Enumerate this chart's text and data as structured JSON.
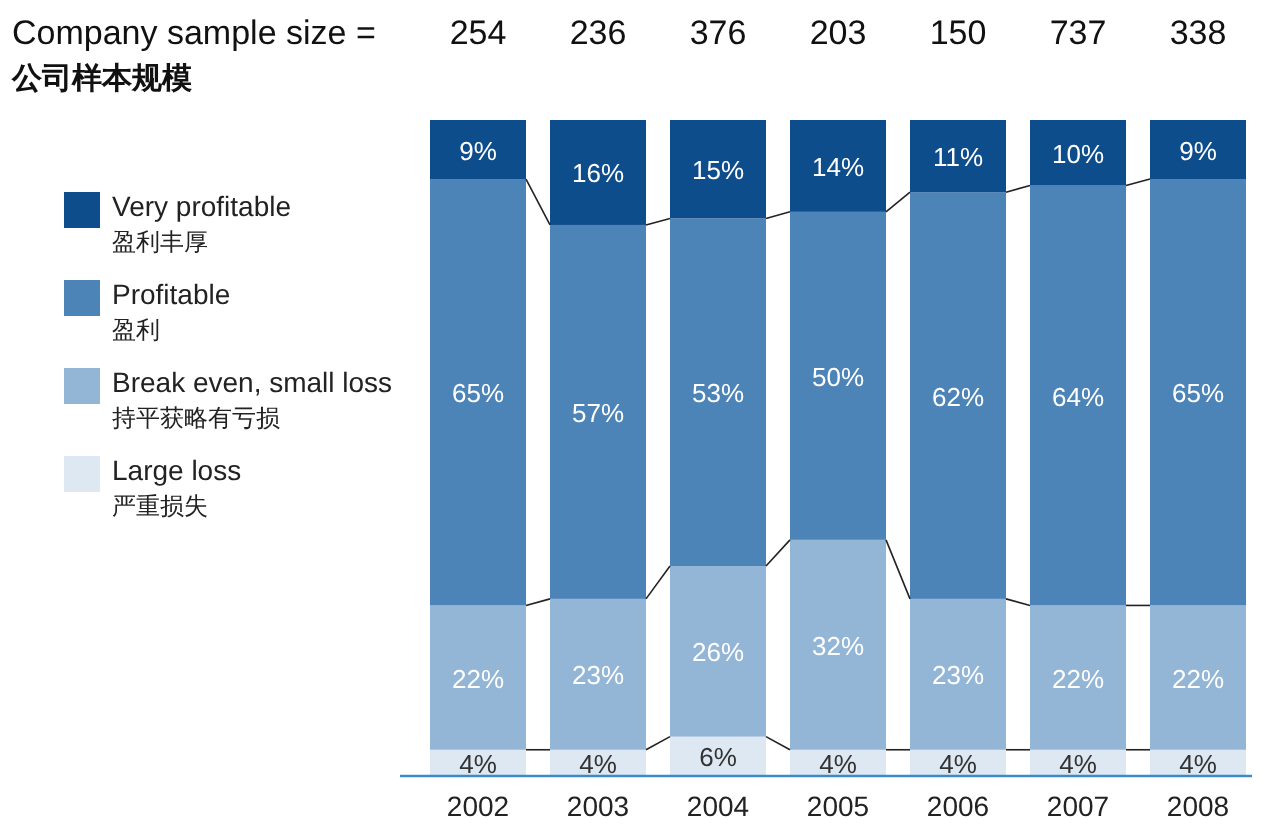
{
  "chart_data": {
    "type": "bar",
    "stacked": true,
    "categories": [
      "2002",
      "2003",
      "2004",
      "2005",
      "2006",
      "2007",
      "2008"
    ],
    "series": [
      {
        "name": "Large loss\n严重损失",
        "color": "#dde8f2",
        "values": [
          4,
          4,
          6,
          4,
          4,
          4,
          4
        ],
        "value_labels": [
          "4%",
          "4%",
          "6%",
          "4%",
          "4%",
          "4%",
          "4%"
        ]
      },
      {
        "name": "Break even, small loss\n持平获略有亏损",
        "color": "#93b5d6",
        "values": [
          22,
          23,
          26,
          32,
          23,
          22,
          22
        ],
        "value_labels": [
          "22%",
          "23%",
          "26%",
          "32%",
          "23%",
          "22%",
          "22%"
        ]
      },
      {
        "name": "Profitable\n盈利",
        "color": "#4d84b8",
        "values": [
          65,
          57,
          53,
          50,
          62,
          64,
          65
        ],
        "value_labels": [
          "65%",
          "57%",
          "53%",
          "50%",
          "62%",
          "64%",
          "65%"
        ]
      },
      {
        "name": "Very profitable\n盈利丰厚",
        "color": "#0e4d8c",
        "values": [
          9,
          16,
          15,
          14,
          11,
          10,
          9
        ],
        "value_labels": [
          "9%",
          "16%",
          "15%",
          "14%",
          "11%",
          "10%",
          "9%"
        ]
      }
    ],
    "ylim": [
      0,
      100
    ],
    "tick_labels": "x",
    "legend": "left",
    "annotations": [
      "Company sample size =",
      "公司样本规模",
      "254",
      "236",
      "376",
      "203",
      "150",
      "737",
      "338"
    ]
  }
}
